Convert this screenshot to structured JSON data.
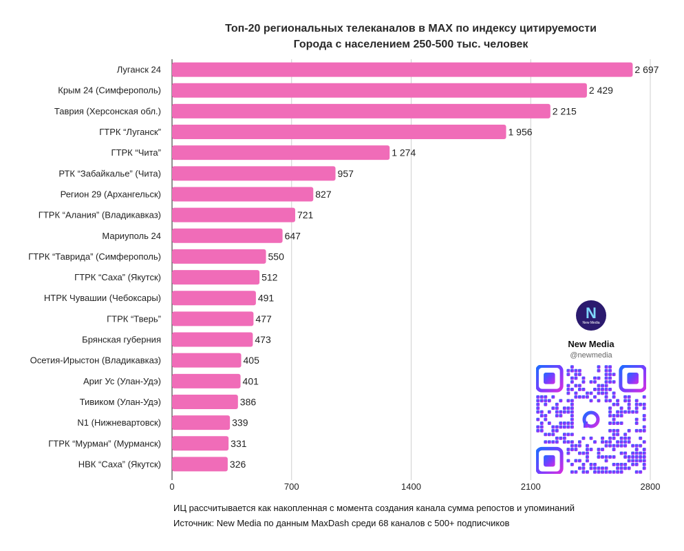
{
  "chart_data": {
    "type": "bar",
    "orientation": "horizontal",
    "title": "Топ-20 региональных телеканалов в MAX по индексу цитируемости",
    "subtitle": "Города с населением 250-500 тыс. человек",
    "categories": [
      "Луганск 24",
      "Крым 24 (Симферополь)",
      "Таврия (Херсонская обл.)",
      "ГТРК “Луганск”",
      "ГТРК “Чита”",
      "РТК “Забайкалье” (Чита)",
      "Регион 29 (Архангельск)",
      "ГТРК “Алания” (Владикавказ)",
      "Мариуполь 24",
      "ГТРК “Таврида” (Симферополь)",
      "ГТРК “Саха” (Якутск)",
      "НТРК Чувашии (Чебоксары)",
      "ГТРК “Тверь”",
      "Брянская губерния",
      "Осетия-Ирыстон (Владикавказ)",
      "Ариг Ус (Улан-Удэ)",
      "Тивиком (Улан-Удэ)",
      "N1 (Нижневартовск)",
      "ГТРК “Мурман” (Мурманск)",
      "НВК “Саха” (Якутск)"
    ],
    "values": [
      2697,
      2429,
      2215,
      1956,
      1274,
      957,
      827,
      721,
      647,
      550,
      512,
      491,
      477,
      473,
      405,
      401,
      386,
      339,
      331,
      326
    ],
    "value_labels": [
      "2 697",
      "2 429",
      "2 215",
      "1 956",
      "1 274",
      "957",
      "827",
      "721",
      "647",
      "550",
      "512",
      "491",
      "477",
      "473",
      "405",
      "401",
      "386",
      "339",
      "331",
      "326"
    ],
    "xticks": [
      0,
      700,
      1400,
      2100,
      2800
    ],
    "xlim": [
      0,
      2800
    ],
    "grid": "vertical",
    "bar_color": "#f06cb8",
    "grid_color": "#cfcfcf"
  },
  "footnote": {
    "line1": "ИЦ рассчитывается как накопленная с момента создания канала сумма репостов и упоминаний",
    "line2": "Источник: New Media по данным MaxDash среди 68 каналов с 500+ подписчиков"
  },
  "brand": {
    "name": "New Media",
    "handle": "@newmedia",
    "logo_letter": "N",
    "logo_sub": "New Media",
    "logo_color": "#2b1a6e",
    "qr_gradient": [
      "#1e6cff",
      "#7a3cff",
      "#d22fe0"
    ],
    "qr_icon": "chat-bubble-icon"
  }
}
